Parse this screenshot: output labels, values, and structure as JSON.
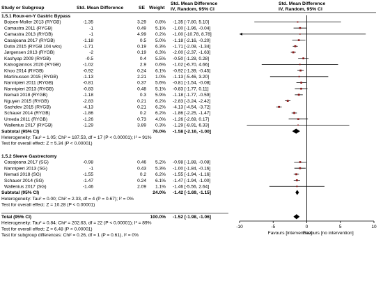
{
  "chart_data": {
    "type": "forest",
    "columns": {
      "study": "Study or Subgroup",
      "smd_se": "Std. Mean Difference",
      "se": "SE",
      "weight": "Weight",
      "ci_group": "Std. Mean Difference",
      "ci_sub": "IV, Random, 95% CI",
      "plot_group": "Std. Mean Difference",
      "plot_sub": "IV, Random, 95% CI"
    },
    "groups": [
      {
        "title": "1.5.1 Roux-en-Y Gastric Bypass",
        "studies": [
          {
            "name": "Bojsen-Moller 2013 (RYGB)",
            "smd": "-1.35",
            "se": "3.29",
            "weight": "0.8%",
            "ci": "-1.35 [-7.80, 5.10]",
            "est": -1.35,
            "lo": -7.8,
            "hi": 5.1
          },
          {
            "name": "Camastra 2011 (RYGB)",
            "smd": "-1",
            "se": "0.49",
            "weight": "5.1%",
            "ci": "-1.00 [-1.96, -0.04]",
            "est": -1.0,
            "lo": -1.96,
            "hi": -0.04
          },
          {
            "name": "Camastra 2013 (RYGB)",
            "smd": "-1",
            "se": "4.99",
            "weight": "0.2%",
            "ci": "-1.00 [-10.78, 8.78]",
            "est": -1.0,
            "lo": -10.78,
            "hi": 8.78
          },
          {
            "name": "Casajoana 2017 (RYGB)",
            "smd": "-1.18",
            "se": "0.5",
            "weight": "5.0%",
            "ci": "-1.18 [-2.16, -0.20]",
            "est": -1.18,
            "lo": -2.16,
            "hi": -0.2
          },
          {
            "name": "Dutia 2015 (RYGB 104 wks)",
            "smd": "-1.71",
            "se": "0.19",
            "weight": "6.3%",
            "ci": "-1.71 [-2.08, -1.34]",
            "est": -1.71,
            "lo": -2.08,
            "hi": -1.34
          },
          {
            "name": "Jørgensen 2013 (RYGB)",
            "smd": "-2",
            "se": "0.19",
            "weight": "6.3%",
            "ci": "-2.00 [-2.37, -1.63]",
            "est": -2.0,
            "lo": -2.37,
            "hi": -1.63
          },
          {
            "name": "Kashyap 2009 (RYGB)",
            "smd": "-0.5",
            "se": "0.4",
            "weight": "5.5%",
            "ci": "-0.50 [-1.28, 0.28]",
            "est": -0.5,
            "lo": -1.28,
            "hi": 0.28
          },
          {
            "name": "Katsogiannos 2020 (RYGB)",
            "smd": "-1.02",
            "se": "2.9",
            "weight": "0.6%",
            "ci": "-1.02 [-6.70, 4.66]",
            "est": -1.02,
            "lo": -6.7,
            "hi": 4.66
          },
          {
            "name": "Khoo 2014 (RYGB)",
            "smd": "-0.92",
            "se": "0.24",
            "weight": "6.1%",
            "ci": "-0.92 [-1.39, -0.45]",
            "est": -0.92,
            "lo": -1.39,
            "hi": -0.45
          },
          {
            "name": "Martinussen 2015 (RYGB)",
            "smd": "-1.13",
            "se": "2.21",
            "weight": "1.0%",
            "ci": "-1.13 [-5.46, 3.20]",
            "est": -1.13,
            "lo": -5.46,
            "hi": 3.2
          },
          {
            "name": "Nannipieri 2011 (RYGB)",
            "smd": "-0.81",
            "se": "0.37",
            "weight": "5.6%",
            "ci": "-0.81 [-1.54, -0.08]",
            "est": -0.81,
            "lo": -1.54,
            "hi": -0.08
          },
          {
            "name": "Nannipieri 2013 (RYGB)",
            "smd": "-0.83",
            "se": "0.48",
            "weight": "5.1%",
            "ci": "-0.83 [-1.77, 0.11]",
            "est": -0.83,
            "lo": -1.77,
            "hi": 0.11
          },
          {
            "name": "Nemati 2018 (RYGB)",
            "smd": "-1.18",
            "se": "0.3",
            "weight": "5.9%",
            "ci": "-1.18 [-1.77, -0.59]",
            "est": -1.18,
            "lo": -1.77,
            "hi": -0.59
          },
          {
            "name": "Nguyen 2015 (RYGB)",
            "smd": "-2.83",
            "se": "0.21",
            "weight": "6.2%",
            "ci": "-2.83 [-3.24, -2.42]",
            "est": -2.83,
            "lo": -3.24,
            "hi": -2.42
          },
          {
            "name": "Sachdev 2015 (RYGB)",
            "smd": "-4.13",
            "se": "0.21",
            "weight": "6.2%",
            "ci": "-4.13 [-4.54, -3.72]",
            "est": -4.13,
            "lo": -4.54,
            "hi": -3.72
          },
          {
            "name": "Schauer 2014 (RYGB)",
            "smd": "-1.86",
            "se": "0.2",
            "weight": "6.2%",
            "ci": "-1.86 [-2.25, -1.47]",
            "est": -1.86,
            "lo": -2.25,
            "hi": -1.47
          },
          {
            "name": "Umeda 2011 (RYGB)",
            "smd": "-1.26",
            "se": "0.73",
            "weight": "4.0%",
            "ci": "-1.26 [-2.69, 0.17]",
            "est": -1.26,
            "lo": -2.69,
            "hi": 0.17
          },
          {
            "name": "Wallenius 2017 (RYGB)",
            "smd": "-1.29",
            "se": "3.89",
            "weight": "0.3%",
            "ci": "-1.29 [-8.91, 6.33]",
            "est": -1.29,
            "lo": -8.91,
            "hi": 6.33
          }
        ],
        "subtotal": {
          "label": "Subtotal (95% CI)",
          "weight": "76.0%",
          "ci": "-1.58 [-2.16, -1.00]",
          "est": -1.58,
          "lo": -2.16,
          "hi": -1.0
        },
        "heterogeneity": "Heterogeneity: Tau² = 1.05; Chi² = 187.53, df = 17 (P < 0.00001); I² = 91%",
        "overall_test": "Test for overall effect: Z = 5.34 (P < 0.00001)"
      },
      {
        "title": "1.5.2 Sleeve Gastrectomy",
        "studies": [
          {
            "name": "Casajoana 2017 (SG)",
            "smd": "-0.98",
            "se": "0.46",
            "weight": "5.2%",
            "ci": "-0.98 [-1.88, -0.08]",
            "est": -0.98,
            "lo": -1.88,
            "hi": -0.08
          },
          {
            "name": "Nannipieri 2013 (SG)",
            "smd": "-1",
            "se": "0.43",
            "weight": "5.3%",
            "ci": "-1.00 [-1.84, -0.16]",
            "est": -1.0,
            "lo": -1.84,
            "hi": -0.16
          },
          {
            "name": "Nemati 2018 (SG)",
            "smd": "-1.55",
            "se": "0.2",
            "weight": "6.2%",
            "ci": "-1.55 [-1.94, -1.16]",
            "est": -1.55,
            "lo": -1.94,
            "hi": -1.16
          },
          {
            "name": "Schauer 2014 (SG)",
            "smd": "-1.47",
            "se": "0.24",
            "weight": "6.1%",
            "ci": "-1.47 [-1.94, -1.00]",
            "est": -1.47,
            "lo": -1.94,
            "hi": -1.0
          },
          {
            "name": "Wallenius 2017 (SG)",
            "smd": "-1.46",
            "se": "2.09",
            "weight": "1.1%",
            "ci": "-1.46 [-5.56, 2.64]",
            "est": -1.46,
            "lo": -5.56,
            "hi": 2.64
          }
        ],
        "subtotal": {
          "label": "Subtotal (95% CI)",
          "weight": "24.0%",
          "ci": "-1.42 [-1.69, -1.15]",
          "est": -1.42,
          "lo": -1.69,
          "hi": -1.15
        },
        "heterogeneity": "Heterogeneity: Tau² = 0.00; Chi² = 2.33, df = 4 (P = 0.67); I² = 0%",
        "overall_test": "Test for overall effect: Z = 10.28 (P < 0.00001)"
      }
    ],
    "total": {
      "label": "Total (95% CI)",
      "weight": "100.0%",
      "ci": "-1.52 [-1.98, -1.06]",
      "est": -1.52,
      "lo": -1.98,
      "hi": -1.06
    },
    "total_heterogeneity": "Heterogeneity: Tau² = 0.84; Chi² = 202.63, df = 22 (P < 0.00001); I² = 89%",
    "total_overall_test": "Test for overall effect: Z = 6.48 (P < 0.00001)",
    "subgroup_test": "Test for subgroup differences: Chi² = 0.26, df = 1 (P = 0.61), I² = 0%",
    "axis": {
      "min": -10,
      "max": 10,
      "ticks": [
        -10,
        -5,
        0,
        5,
        10
      ],
      "tick_labels": [
        "-10",
        "-5",
        "0",
        "5",
        "10"
      ]
    },
    "favours_left": "Favours [intervention]",
    "favours_right": "Favours [no intervention]",
    "colors": {
      "marker": "#8b1a1a",
      "diamond": "#000000",
      "line": "#000000"
    }
  }
}
